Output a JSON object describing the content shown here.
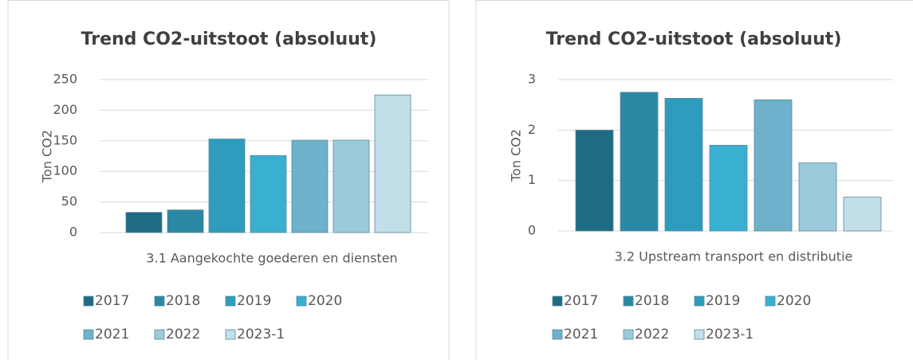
{
  "chart_data": [
    {
      "type": "bar",
      "title": "Trend CO2-uitstoot (absoluut)",
      "y_label": "Ton CO2",
      "categories": [
        "3.1 Aangekochte goederen en diensten"
      ],
      "ylim": [
        0,
        250
      ],
      "yticks": [
        0,
        50,
        100,
        150,
        200,
        250
      ],
      "grid": true,
      "series": [
        {
          "name": "2017",
          "color": "#1f6b84",
          "values": [
            33
          ]
        },
        {
          "name": "2018",
          "color": "#2a88a4",
          "values": [
            37
          ]
        },
        {
          "name": "2019",
          "color": "#2e9cbd",
          "values": [
            153
          ]
        },
        {
          "name": "2020",
          "color": "#39b0d1",
          "values": [
            126
          ]
        },
        {
          "name": "2021",
          "color": "#6eb1cb",
          "values": [
            151
          ]
        },
        {
          "name": "2022",
          "color": "#9ccadb",
          "values": [
            151
          ]
        },
        {
          "name": "2023-1",
          "color": "#c2dee8",
          "values": [
            225
          ]
        }
      ]
    },
    {
      "type": "bar",
      "title": "Trend CO2-uitstoot (absoluut)",
      "y_label": "Ton CO2",
      "categories": [
        "3.2 Upstream transport en distributie"
      ],
      "ylim": [
        0,
        3
      ],
      "yticks": [
        0,
        1,
        2,
        3
      ],
      "grid": true,
      "series": [
        {
          "name": "2017",
          "color": "#1f6b84",
          "values": [
            2.0
          ]
        },
        {
          "name": "2018",
          "color": "#2a88a4",
          "values": [
            2.75
          ]
        },
        {
          "name": "2019",
          "color": "#2e9cbd",
          "values": [
            2.63
          ]
        },
        {
          "name": "2020",
          "color": "#39b0d1",
          "values": [
            1.7
          ]
        },
        {
          "name": "2021",
          "color": "#6eb1cb",
          "values": [
            2.6
          ]
        },
        {
          "name": "2022",
          "color": "#9ccadb",
          "values": [
            1.35
          ]
        },
        {
          "name": "2023-1",
          "color": "#c2dee8",
          "values": [
            0.67
          ]
        }
      ]
    }
  ]
}
